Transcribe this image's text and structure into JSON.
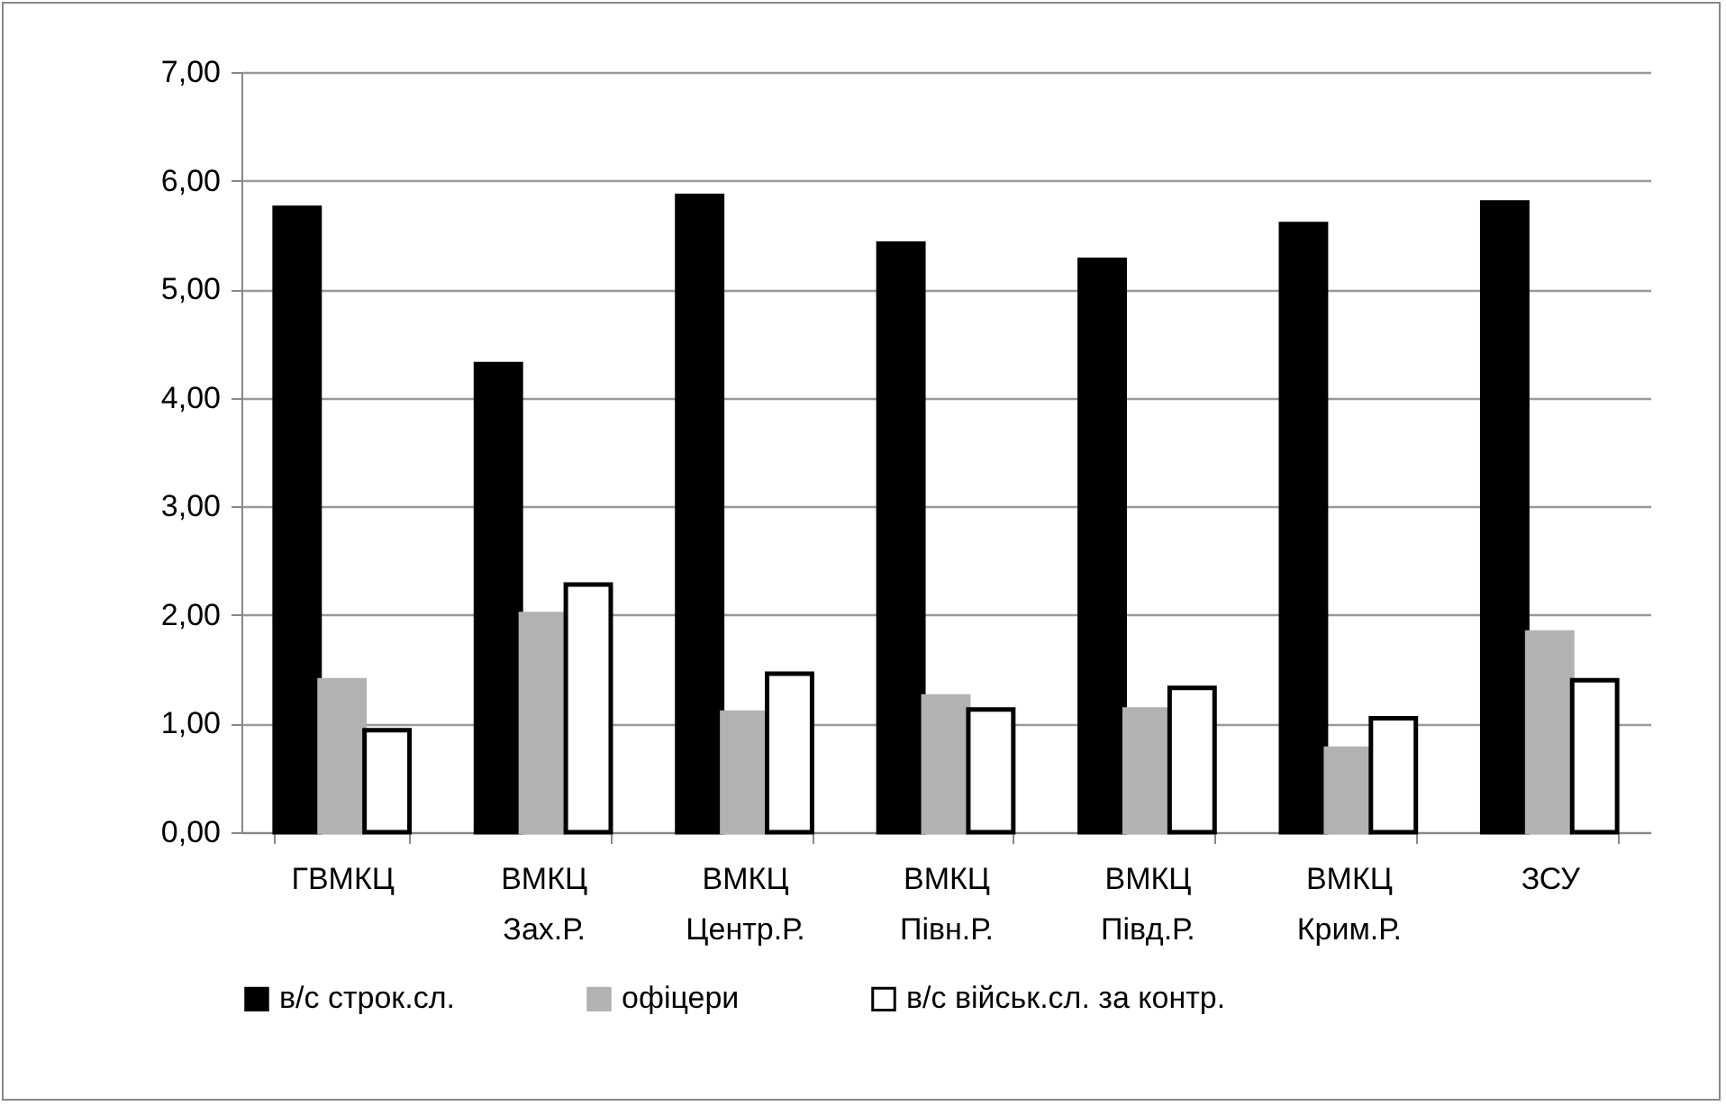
{
  "chart_data": {
    "type": "bar",
    "categories": [
      "ГВМКЦ",
      "ВМКЦ Зах.Р.",
      "ВМКЦ Центр.Р.",
      "ВМКЦ Півн.Р.",
      "ВМКЦ Півд.Р.",
      "ВМКЦ Крим.Р.",
      "ЗСУ"
    ],
    "series": [
      {
        "name": "в/с строк.сл.",
        "color": "#000000",
        "values": [
          5.75,
          4.31,
          5.86,
          5.42,
          5.27,
          5.6,
          5.8
        ]
      },
      {
        "name": "офіцери",
        "color": "#b2b2b2",
        "values": [
          1.4,
          2.01,
          1.1,
          1.25,
          1.13,
          0.77,
          1.84
        ]
      },
      {
        "name": "в/с військ.сл. за контр.",
        "color": "#ffffff",
        "values": [
          0.94,
          2.28,
          1.46,
          1.13,
          1.33,
          1.05,
          1.4
        ]
      }
    ],
    "ylim": [
      0,
      7
    ],
    "yticks": [
      {
        "value": 0,
        "label": "0,00"
      },
      {
        "value": 1,
        "label": "1,00"
      },
      {
        "value": 2,
        "label": "2,00"
      },
      {
        "value": 3,
        "label": "3,00"
      },
      {
        "value": 4,
        "label": "4,00"
      },
      {
        "value": 5,
        "label": "5,00"
      },
      {
        "value": 6,
        "label": "6,00"
      },
      {
        "value": 7,
        "label": "7,00"
      }
    ],
    "grid": "y",
    "legend": "bottom"
  }
}
